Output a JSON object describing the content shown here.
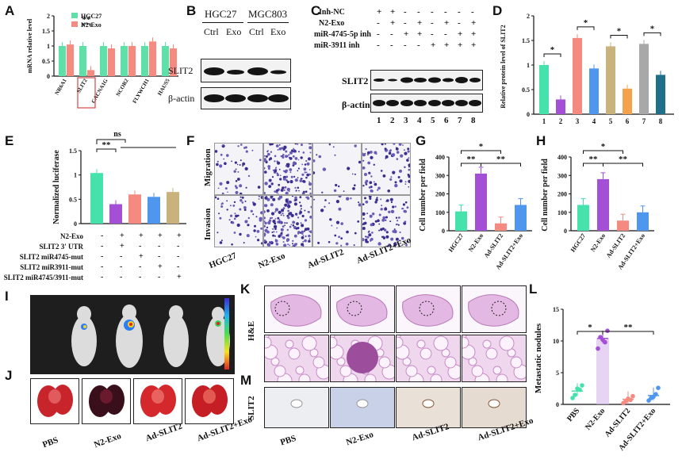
{
  "panels": {
    "A": "A",
    "B": "B",
    "C": "C",
    "D": "D",
    "E": "E",
    "F": "F",
    "G": "G",
    "H": "H",
    "I": "I",
    "J": "J",
    "K": "K",
    "L": "L",
    "M": "M"
  },
  "chart_data": [
    {
      "id": "A",
      "type": "bar",
      "ylabel": "mRNA relative level",
      "categories": [
        "NR6A1",
        "SLIT2",
        "CACNA1G",
        "NCOR2",
        "FLYWCH1",
        "HAUS5"
      ],
      "series": [
        {
          "name": "HGC27",
          "color": "#5ee0a8",
          "values": [
            1.0,
            1.0,
            1.0,
            1.0,
            1.0,
            1.0
          ]
        },
        {
          "name": "N2-Exo",
          "color": "#f58a80",
          "values": [
            1.05,
            0.2,
            0.92,
            1.0,
            1.15,
            0.92
          ]
        }
      ],
      "ylim": [
        0,
        2.0
      ],
      "yticks": [
        0,
        0.5,
        1.0,
        1.5,
        2.0
      ],
      "annotation": "**",
      "highlight": "SLIT2"
    },
    {
      "id": "D",
      "type": "bar",
      "ylabel": "Relative protein level of SLIT2",
      "categories": [
        "1",
        "2",
        "3",
        "4",
        "5",
        "6",
        "7",
        "8"
      ],
      "values": [
        1.0,
        0.3,
        1.55,
        0.93,
        1.38,
        0.52,
        1.43,
        0.8
      ],
      "colors": [
        "#45e2ac",
        "#a34fd6",
        "#f58a80",
        "#4f96ef",
        "#c9b27c",
        "#f5a24c",
        "#a8a8a8",
        "#1f6f8b"
      ],
      "ylim": [
        0,
        2.0
      ],
      "yticks": [
        0,
        0.5,
        1.0,
        1.5,
        2.0
      ],
      "sig": [
        "*",
        "*",
        "*",
        "*"
      ]
    },
    {
      "id": "E",
      "type": "bar",
      "ylabel": "Normalized luciferase",
      "values": [
        1.04,
        0.4,
        0.6,
        0.55,
        0.65
      ],
      "colors": [
        "#45e2ac",
        "#a34fd6",
        "#f58a80",
        "#4f96ef",
        "#c9b27c"
      ],
      "ylim": [
        0,
        1.5
      ],
      "yticks": [
        0,
        0.5,
        1.0,
        1.5
      ],
      "sig": [
        "**",
        "ns"
      ]
    },
    {
      "id": "G",
      "type": "bar",
      "ylabel": "Cell number per field",
      "categories": [
        "HGC27",
        "N2-Exo",
        "Ad-SLIT2",
        "Ad-SLIT2+Exo"
      ],
      "values": [
        105,
        310,
        40,
        140
      ],
      "colors": [
        "#45e2ac",
        "#a34fd6",
        "#f58a80",
        "#4f96ef"
      ],
      "ylim": [
        0,
        400
      ],
      "yticks": [
        0,
        100,
        200,
        300,
        400
      ],
      "sig": [
        "*",
        "**",
        "**"
      ]
    },
    {
      "id": "H",
      "type": "bar",
      "ylabel": "Cell number per field",
      "categories": [
        "HGC27",
        "N2-Exo",
        "Ad-SLIT2",
        "Ad-SLIT2+Exo"
      ],
      "values": [
        140,
        280,
        55,
        100
      ],
      "colors": [
        "#45e2ac",
        "#a34fd6",
        "#f58a80",
        "#4f96ef"
      ],
      "ylim": [
        0,
        400
      ],
      "yticks": [
        0,
        100,
        200,
        300,
        400
      ],
      "sig": [
        "*",
        "**",
        "**"
      ]
    },
    {
      "id": "L",
      "type": "scatter",
      "ylabel": "Metastatic nodules",
      "categories": [
        "PBS",
        "N2-Exo",
        "Ad-SLIT2",
        "Ad-SLIT2+Exo"
      ],
      "means": [
        2.1,
        10.4,
        0.8,
        1.4
      ],
      "colors": [
        "#45e2ac",
        "#a34fd6",
        "#f58a80",
        "#4f96ef"
      ],
      "ylim": [
        0,
        15
      ],
      "yticks": [
        0,
        5,
        10,
        15
      ],
      "sig": [
        "*",
        "**"
      ]
    }
  ],
  "B": {
    "col1": "HGC27",
    "col2": "MGC803",
    "lanes": [
      "Ctrl",
      "Exo",
      "Ctrl",
      "Exo"
    ],
    "row1": "SLIT2",
    "row2": "β-actin"
  },
  "C": {
    "rows": [
      {
        "label": "Inh-NC",
        "signs": [
          "+",
          "+",
          "-",
          "-",
          "-",
          "-",
          "-",
          "-"
        ]
      },
      {
        "label": "N2-Exo",
        "signs": [
          "-",
          "+",
          "-",
          "+",
          "-",
          "+",
          "-",
          "+"
        ]
      },
      {
        "label": "miR-4745-5p inh",
        "signs": [
          "-",
          "-",
          "+",
          "+",
          "-",
          "-",
          "+",
          "+"
        ]
      },
      {
        "label": "miR-3911 inh",
        "signs": [
          "-",
          "-",
          "-",
          "-",
          "+",
          "+",
          "+",
          "+"
        ]
      }
    ],
    "row1": "SLIT2",
    "row2": "β-actin",
    "lanes": [
      "1",
      "2",
      "3",
      "4",
      "5",
      "6",
      "7",
      "8"
    ]
  },
  "E_table": {
    "rows": [
      {
        "label": "N2-Exo",
        "signs": [
          "-",
          "+",
          "+",
          "+",
          "+"
        ]
      },
      {
        "label": "SLIT2 3' UTR",
        "signs": [
          "-",
          "+",
          "-",
          "-",
          "-"
        ]
      },
      {
        "label": "SLIT2  miR4745-mut",
        "signs": [
          "-",
          "-",
          "+",
          "-",
          "-"
        ]
      },
      {
        "label": "SLIT2  miR3911-mut",
        "signs": [
          "-",
          "-",
          "-",
          "+",
          "-"
        ]
      },
      {
        "label": "SLIT2  miR4745/3911-mut",
        "signs": [
          "-",
          "-",
          "-",
          "-",
          "+"
        ]
      }
    ]
  },
  "F": {
    "row1": "Migration",
    "row2": "Invasion",
    "cols": [
      "HGC27",
      "N2-Exo",
      "Ad-SLIT2",
      "Ad-SLIT2+Exo"
    ]
  },
  "K": {
    "row_label": "H&E"
  },
  "M": {
    "row_label": "SLIT2",
    "cols": [
      "PBS",
      "N2-Exo",
      "Ad-SLIT2",
      "Ad-SLIT2+Exo"
    ]
  },
  "J": {
    "cols": [
      "PBS",
      "N2-Exo",
      "Ad-SLIT2",
      "Ad-SLIT2+Exo"
    ]
  }
}
